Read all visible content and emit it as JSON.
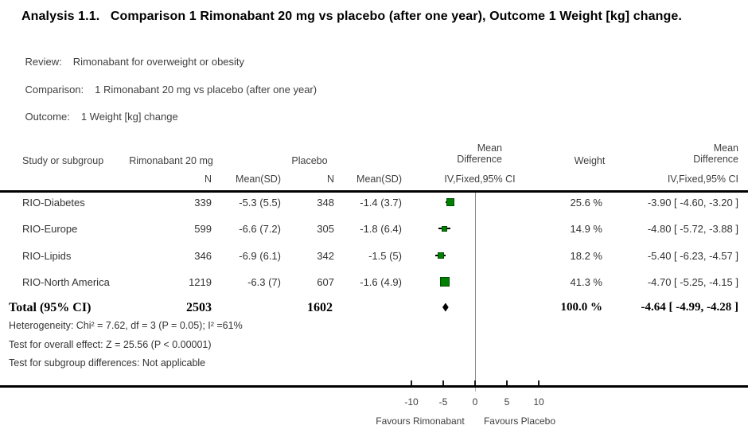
{
  "title": "Analysis 1.1.   Comparison 1 Rimonabant 20 mg vs placebo (after one year), Outcome 1 Weight [kg] change.",
  "meta": {
    "review_label": "Review:",
    "review_value": "Rimonabant for overweight or obesity",
    "comparison_label": "Comparison:",
    "comparison_value": "1 Rimonabant 20 mg vs placebo (after one year)",
    "outcome_label": "Outcome:",
    "outcome_value": "1 Weight [kg] change"
  },
  "table": {
    "headers": {
      "study": "Study or subgroup",
      "group1": "Rimonabant 20 mg",
      "group2": "Placebo",
      "effect_line1": "Mean",
      "effect_line2": "Difference",
      "weight": "Weight",
      "n": "N",
      "mean_sd": "Mean(SD)",
      "ci_method": "IV,Fixed,95% CI"
    },
    "rows": [
      {
        "study": "RIO-Diabetes",
        "n1": "339",
        "mean1": "-5.3 (5.5)",
        "n2": "348",
        "mean2": "-1.4 (3.7)",
        "weight": "25.6 %",
        "ci_text": "-3.90 [ -4.60, -3.20 ]"
      },
      {
        "study": "RIO-Europe",
        "n1": "599",
        "mean1": "-6.6 (7.2)",
        "n2": "305",
        "mean2": "-1.8 (6.4)",
        "weight": "14.9 %",
        "ci_text": "-4.80 [ -5.72, -3.88 ]"
      },
      {
        "study": "RIO-Lipids",
        "n1": "346",
        "mean1": "-6.9 (6.1)",
        "n2": "342",
        "mean2": "-1.5 (5)",
        "weight": "18.2 %",
        "ci_text": "-5.40 [ -6.23, -4.57 ]"
      },
      {
        "study": "RIO-North America",
        "n1": "1219",
        "mean1": "-6.3 (7)",
        "n2": "607",
        "mean2": "-1.6 (4.9)",
        "weight": "41.3 %",
        "ci_text": "-4.70 [ -5.25, -4.15 ]"
      }
    ],
    "total": {
      "label": "Total (95% CI)",
      "n1": "2503",
      "n2": "1602",
      "weight": "100.0 %",
      "ci_text": "-4.64 [ -4.99, -4.28 ]"
    },
    "footnotes": [
      "Heterogeneity: Chi² = 7.62, df = 3 (P = 0.05); I² =61%",
      "Test for overall effect: Z = 25.56 (P < 0.00001)",
      "Test for subgroup differences: Not applicable"
    ]
  },
  "axis": {
    "ticks": [
      -10,
      -5,
      0,
      5,
      10
    ],
    "favours_left": "Favours Rimonabant",
    "favours_right": "Favours Placebo"
  },
  "chart_data": {
    "type": "forest",
    "title": "Comparison 1 Rimonabant 20 mg vs placebo (after one year), Outcome 1 Weight [kg] change",
    "effect_measure": "Mean Difference, IV, Fixed, 95% CI",
    "studies": [
      "RIO-Diabetes",
      "RIO-Europe",
      "RIO-Lipids",
      "RIO-North America"
    ],
    "treatment_n": [
      339,
      599,
      346,
      1219
    ],
    "treatment_mean_sd": [
      "-5.3 (5.5)",
      "-6.6 (7.2)",
      "-6.9 (6.1)",
      "-6.3 (7)"
    ],
    "placebo_n": [
      348,
      305,
      342,
      607
    ],
    "placebo_mean_sd": [
      "-1.4 (3.7)",
      "-1.8 (6.4)",
      "-1.5 (5)",
      "-1.6 (4.9)"
    ],
    "estimates": [
      -3.9,
      -4.8,
      -5.4,
      -4.7
    ],
    "ci_low": [
      -4.6,
      -5.72,
      -6.23,
      -5.25
    ],
    "ci_high": [
      -3.2,
      -3.88,
      -4.57,
      -4.15
    ],
    "weights_pct": [
      25.6,
      14.9,
      18.2,
      41.3
    ],
    "total": {
      "n1": 2503,
      "n2": 1602,
      "estimate": -4.64,
      "ci_low": -4.99,
      "ci_high": -4.28,
      "weight_pct": 100.0
    },
    "heterogeneity": {
      "chi2": 7.62,
      "df": 3,
      "p": 0.05,
      "i2_pct": 61
    },
    "overall_effect": {
      "z": 25.56,
      "p": "< 0.00001"
    },
    "xlim": [
      -12.5,
      12.5
    ],
    "x_ticks": [
      -10,
      -5,
      0,
      5,
      10
    ],
    "marker_color": "#008000",
    "diamond_color": "#000000"
  }
}
